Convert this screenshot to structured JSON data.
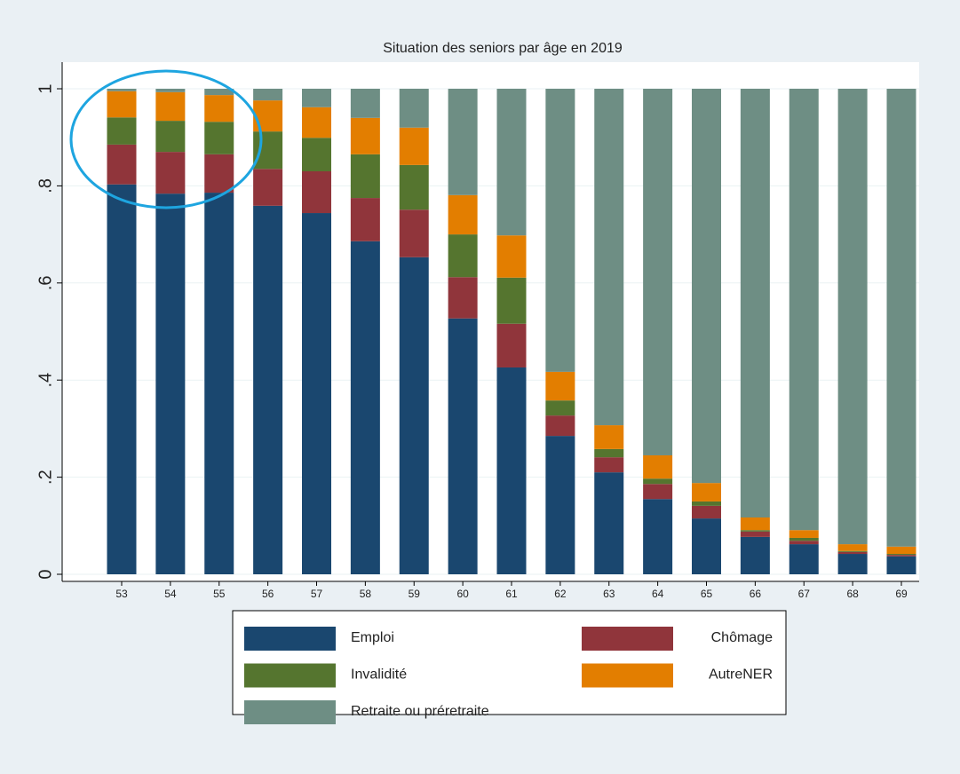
{
  "chart_data": {
    "type": "stacked_bar",
    "title": "Situation des seniors par âge en 2019",
    "categories": [
      "53",
      "54",
      "55",
      "56",
      "57",
      "58",
      "59",
      "60",
      "61",
      "62",
      "63",
      "64",
      "65",
      "66",
      "67",
      "68",
      "69"
    ],
    "series": [
      {
        "name": "Emploi",
        "color": "#1a476f",
        "values": [
          0.803,
          0.784,
          0.786,
          0.759,
          0.744,
          0.686,
          0.653,
          0.527,
          0.426,
          0.285,
          0.21,
          0.155,
          0.115,
          0.077,
          0.062,
          0.042,
          0.037
        ]
      },
      {
        "name": "Chômage",
        "color": "#90353b",
        "values": [
          0.082,
          0.086,
          0.079,
          0.076,
          0.086,
          0.089,
          0.098,
          0.085,
          0.09,
          0.042,
          0.031,
          0.031,
          0.026,
          0.011,
          0.007,
          0.004,
          0.003
        ]
      },
      {
        "name": "Invalidité",
        "color": "#55752f",
        "values": [
          0.056,
          0.064,
          0.067,
          0.077,
          0.069,
          0.09,
          0.092,
          0.088,
          0.095,
          0.031,
          0.017,
          0.011,
          0.009,
          0.003,
          0.006,
          0.002,
          0.002
        ]
      },
      {
        "name": "AutreNER",
        "color": "#e37e00",
        "values": [
          0.054,
          0.059,
          0.055,
          0.064,
          0.063,
          0.075,
          0.077,
          0.081,
          0.087,
          0.059,
          0.049,
          0.048,
          0.038,
          0.026,
          0.016,
          0.014,
          0.015
        ]
      },
      {
        "name": "Retraite ou préretraite",
        "color": "#6e8e84",
        "values": [
          0.005,
          0.007,
          0.013,
          0.024,
          0.038,
          0.06,
          0.08,
          0.219,
          0.302,
          0.583,
          0.693,
          0.755,
          0.812,
          0.883,
          0.909,
          0.938,
          0.943
        ]
      }
    ],
    "ylim": [
      0,
      1
    ],
    "yticks": [
      0,
      {
        "value": 0.2,
        "label": ".2"
      },
      {
        "value": 0.4,
        "label": ".4"
      },
      {
        "value": 0.6,
        "label": ".6"
      },
      {
        "value": 0.8,
        "label": ".8"
      },
      1
    ],
    "grid": true
  }
}
